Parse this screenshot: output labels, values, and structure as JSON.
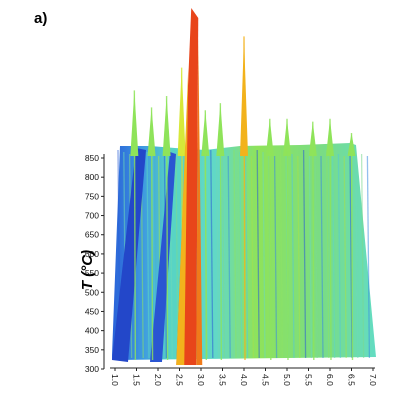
{
  "panel_label": "a)",
  "chart_data": {
    "type": "area",
    "ylabel": "T (°C)",
    "xlabel": "",
    "ylim": [
      300,
      850
    ],
    "y_ticks": [
      300,
      350,
      400,
      450,
      500,
      550,
      600,
      650,
      700,
      750,
      800,
      850
    ],
    "x_ticks": [
      "1.0",
      "1.5",
      "2.0",
      "2.5",
      "3.0",
      "3.5",
      "4.0",
      "4.5",
      "5.0",
      "5.5",
      "6.0",
      "6.5",
      "7.0"
    ],
    "xlim": [
      1.0,
      7.0
    ],
    "colormap": [
      "#1f4fd8",
      "#3fa7e6",
      "#56e0c0",
      "#8fe35a",
      "#d6e83a",
      "#f2b21c",
      "#e8451a"
    ],
    "peaks": [
      {
        "x": 1.45,
        "level": 0.42
      },
      {
        "x": 1.85,
        "level": 0.3
      },
      {
        "x": 2.2,
        "level": 0.38
      },
      {
        "x": 2.55,
        "level": 0.58
      },
      {
        "x": 2.75,
        "level": 1.0
      },
      {
        "x": 3.1,
        "level": 0.28
      },
      {
        "x": 3.45,
        "level": 0.33
      },
      {
        "x": 4.0,
        "level": 0.8
      },
      {
        "x": 4.6,
        "level": 0.22
      },
      {
        "x": 5.0,
        "level": 0.22
      },
      {
        "x": 5.6,
        "level": 0.2
      },
      {
        "x": 6.0,
        "level": 0.22
      },
      {
        "x": 6.5,
        "level": 0.12
      }
    ]
  }
}
